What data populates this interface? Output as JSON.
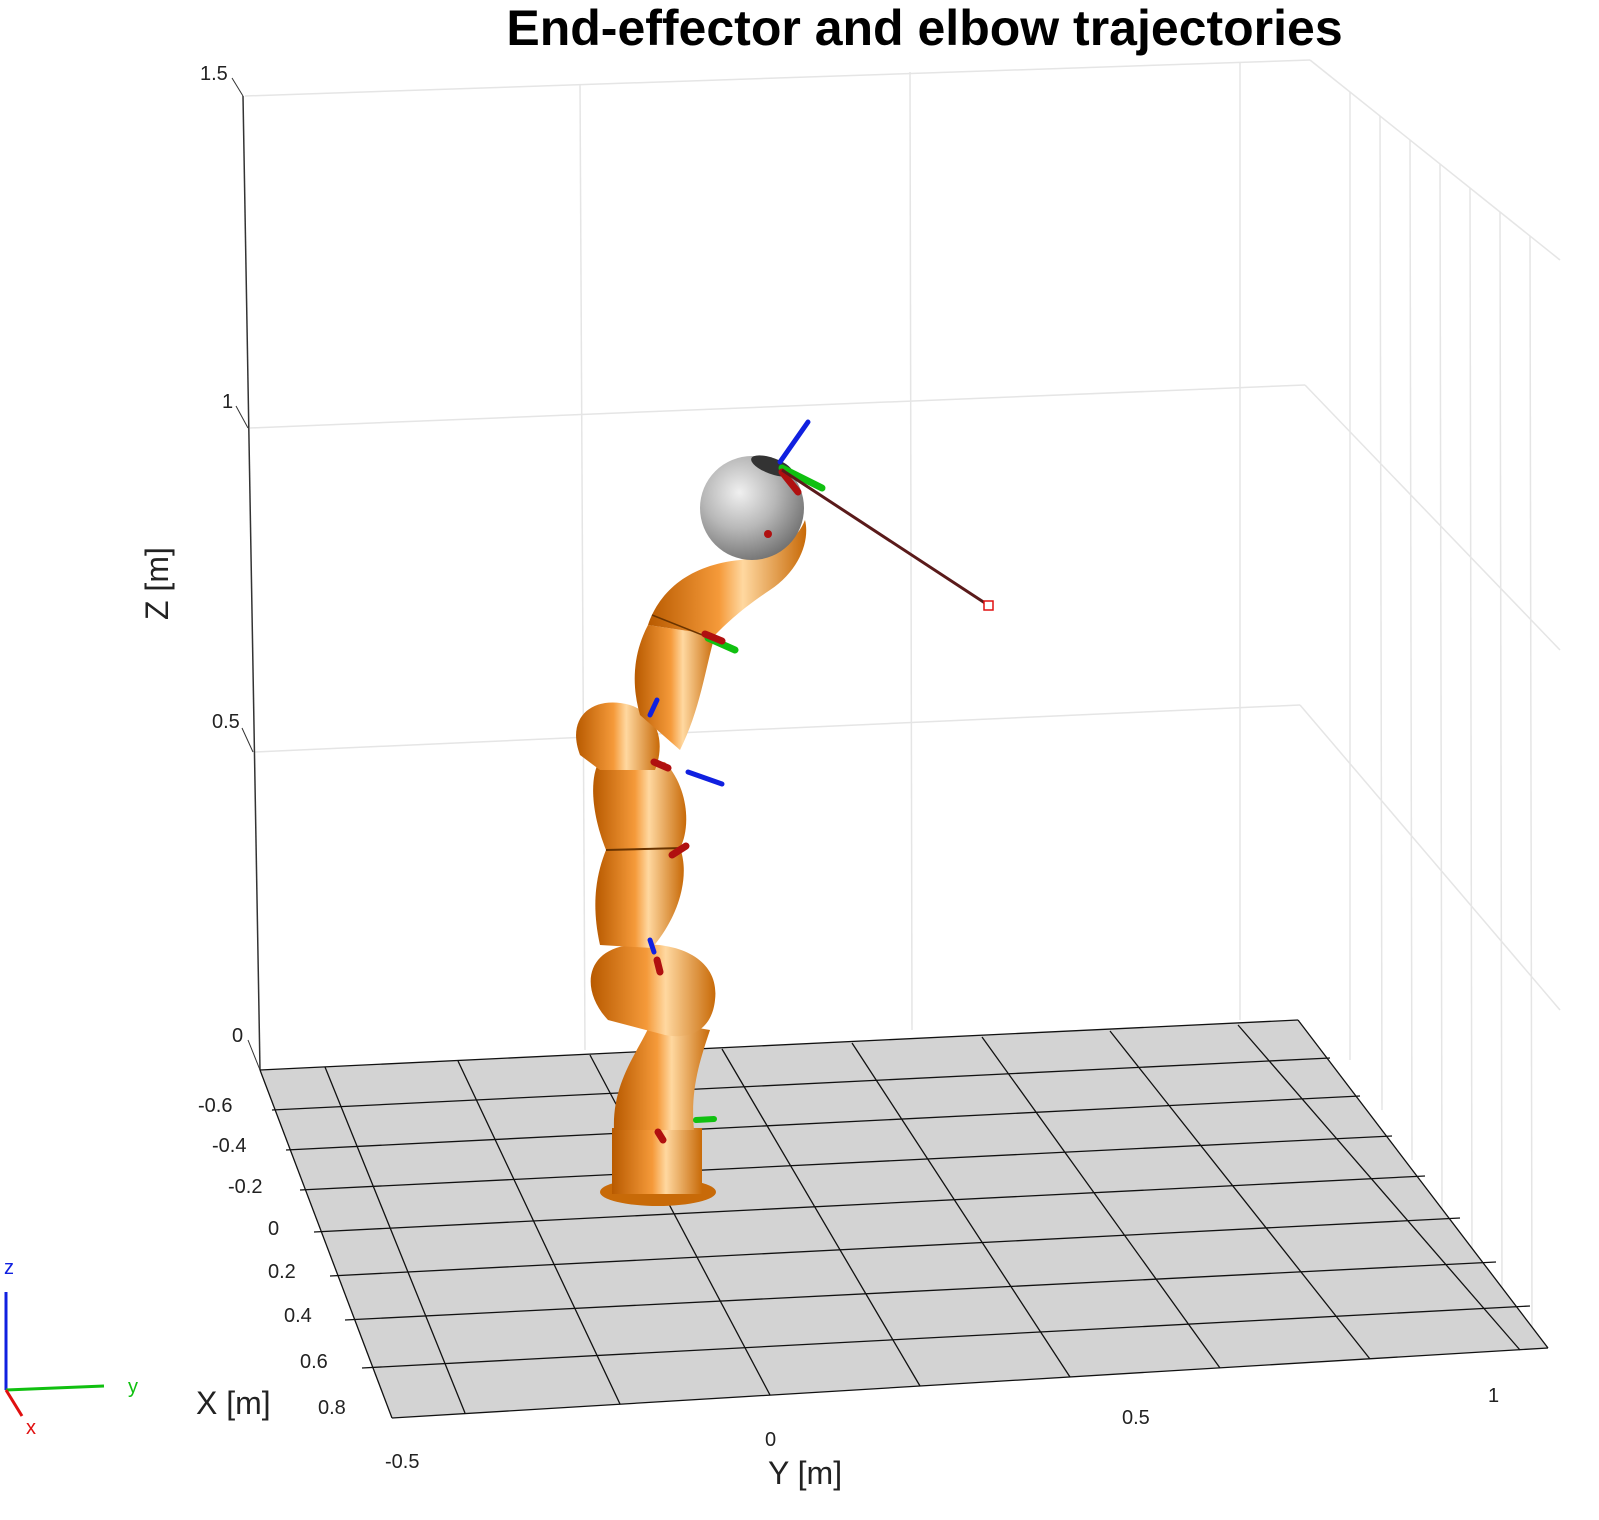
{
  "window": {
    "title": "End-effector and elbow trajectories"
  },
  "axes": {
    "z_label": "Z [m]",
    "x_label": "X [m]",
    "y_label": "Y [m]",
    "z_ticks": [
      "0",
      "0.5",
      "1",
      "1.5"
    ],
    "x_ticks": [
      "-0.6",
      "-0.4",
      "-0.2",
      "0",
      "0.2",
      "0.4",
      "0.6",
      "0.8"
    ],
    "y_ticks": [
      "-0.5",
      "0",
      "0.5",
      "1"
    ]
  },
  "triad": {
    "x": "x",
    "y": "y",
    "z": "z",
    "colors": {
      "x": "#e01010",
      "y": "#10c010",
      "z": "#1020e0"
    }
  },
  "colors": {
    "robot": "#e07a12",
    "robot_shadow": "#b85a00",
    "ball": "#b8b8b8",
    "floor": "#d3d3d3",
    "grid": "#e5e5e5",
    "trajectory": "#8b1a1a"
  },
  "chart_data": {
    "type": "line",
    "title": "End-effector and elbow trajectories",
    "xlabel": "X [m]",
    "ylabel": "Y [m]",
    "zlabel": "Z [m]",
    "xlim": [
      -0.6,
      0.8
    ],
    "ylim": [
      -0.5,
      1
    ],
    "zlim": [
      0,
      1.5
    ],
    "grid": true,
    "series": []
  }
}
